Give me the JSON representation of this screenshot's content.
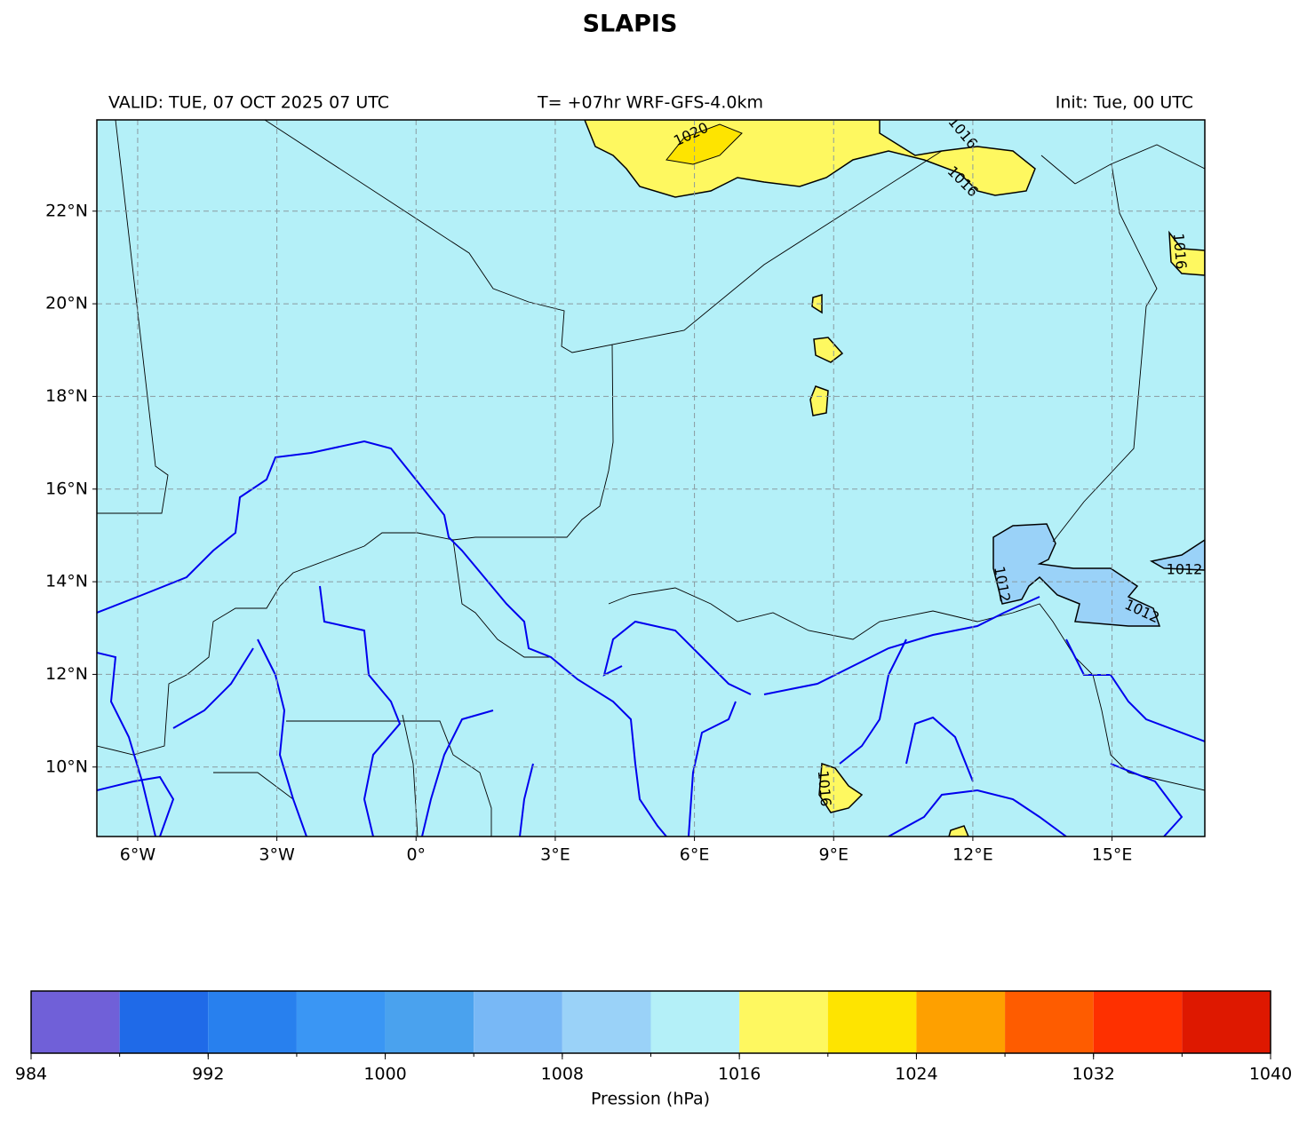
{
  "title": "SLAPIS",
  "header": {
    "valid": "VALID: TUE, 07 OCT 2025 07 UTC",
    "run": "T= +07hr WRF-GFS-4.0km",
    "init": "Init: Tue, 00 UTC"
  },
  "map": {
    "xlim": [
      -6.88,
      17.0
    ],
    "ylim": [
      8.5,
      23.97
    ],
    "xticks": [
      {
        "value": -6,
        "label": "6°W"
      },
      {
        "value": -3,
        "label": "3°W"
      },
      {
        "value": 0,
        "label": "0°"
      },
      {
        "value": 3,
        "label": "3°E"
      },
      {
        "value": 6,
        "label": "6°E"
      },
      {
        "value": 9,
        "label": "9°E"
      },
      {
        "value": 12,
        "label": "12°E"
      },
      {
        "value": 15,
        "label": "15°E"
      }
    ],
    "yticks": [
      {
        "value": 10,
        "label": "10°N"
      },
      {
        "value": 12,
        "label": "12°N"
      },
      {
        "value": 14,
        "label": "14°N"
      },
      {
        "value": 16,
        "label": "16°N"
      },
      {
        "value": 18,
        "label": "18°N"
      },
      {
        "value": 20,
        "label": "20°N"
      },
      {
        "value": 22,
        "label": "22°N"
      }
    ],
    "grid": true,
    "contour_labels": [
      "1020",
      "1016",
      "1016",
      "1016",
      "1016",
      "1012",
      "1012",
      "1012"
    ]
  },
  "colorbar": {
    "label": "Pression (hPa)",
    "levels": [
      984,
      988,
      992,
      996,
      1000,
      1004,
      1008,
      1012,
      1016,
      1020,
      1024,
      1028,
      1032,
      1036,
      1040
    ],
    "colors": [
      "#7060d8",
      "#1f6ae8",
      "#2880ee",
      "#3a96f4",
      "#4aa2ee",
      "#78b8f6",
      "#9ad2f8",
      "#b4f0f8",
      "#fef860",
      "#fee400",
      "#fea000",
      "#fe5c00",
      "#fe3000",
      "#de1800"
    ],
    "ticks": [
      984,
      992,
      1000,
      1008,
      1016,
      1024,
      1032,
      1040
    ]
  }
}
